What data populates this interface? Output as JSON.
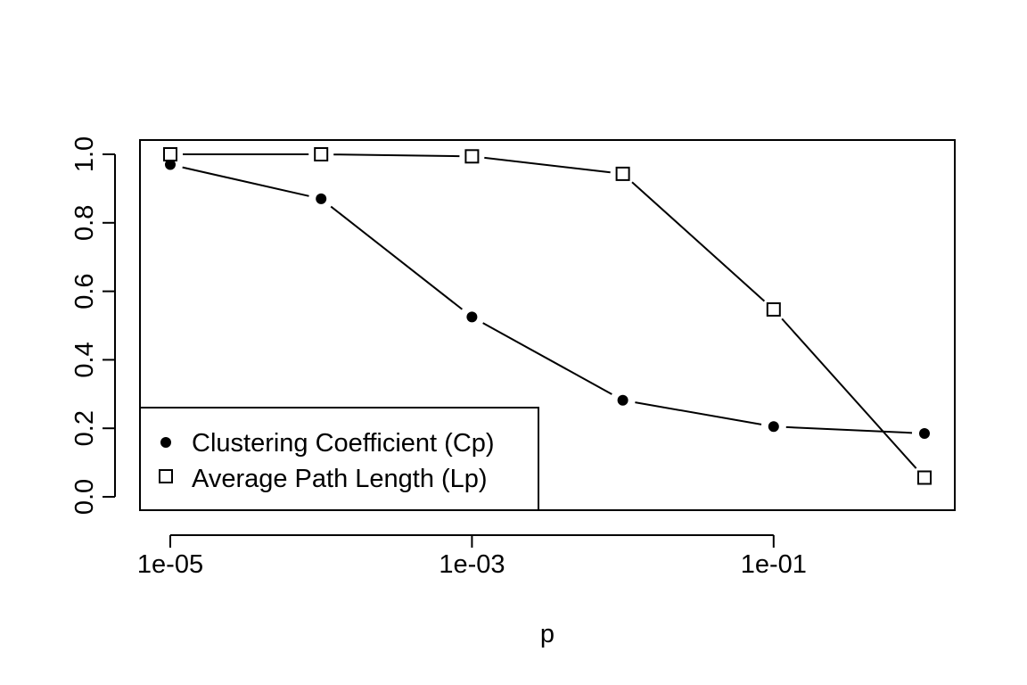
{
  "chart_data": {
    "type": "line",
    "title": "",
    "xlabel": "p",
    "ylabel": "",
    "x_scale": "log",
    "x": [
      1e-05,
      0.0001,
      0.001,
      0.01,
      0.1,
      1
    ],
    "xlim": [
      1e-05,
      1
    ],
    "ylim": [
      0,
      1
    ],
    "x_ticks": [
      1e-05,
      0.001,
      0.1
    ],
    "x_tick_labels": [
      "1e-05",
      "1e-03",
      "1e-01"
    ],
    "y_ticks": [
      0,
      0.2,
      0.4,
      0.6,
      0.8,
      1
    ],
    "y_tick_labels": [
      "0.0",
      "0.2",
      "0.4",
      "0.6",
      "0.8",
      "1.0"
    ],
    "grid": false,
    "legend_position": "bottom-left",
    "series": [
      {
        "name": "Clustering Coefficient (Cp)",
        "marker": "filled-circle",
        "values": [
          0.97,
          0.87,
          0.525,
          0.282,
          0.205,
          0.185
        ]
      },
      {
        "name": "Average Path Length (Lp)",
        "marker": "open-square",
        "values": [
          1.0,
          1.0,
          0.994,
          0.943,
          0.547,
          0.056
        ]
      }
    ],
    "colors": {
      "line": "#000000",
      "background": "#ffffff"
    }
  }
}
